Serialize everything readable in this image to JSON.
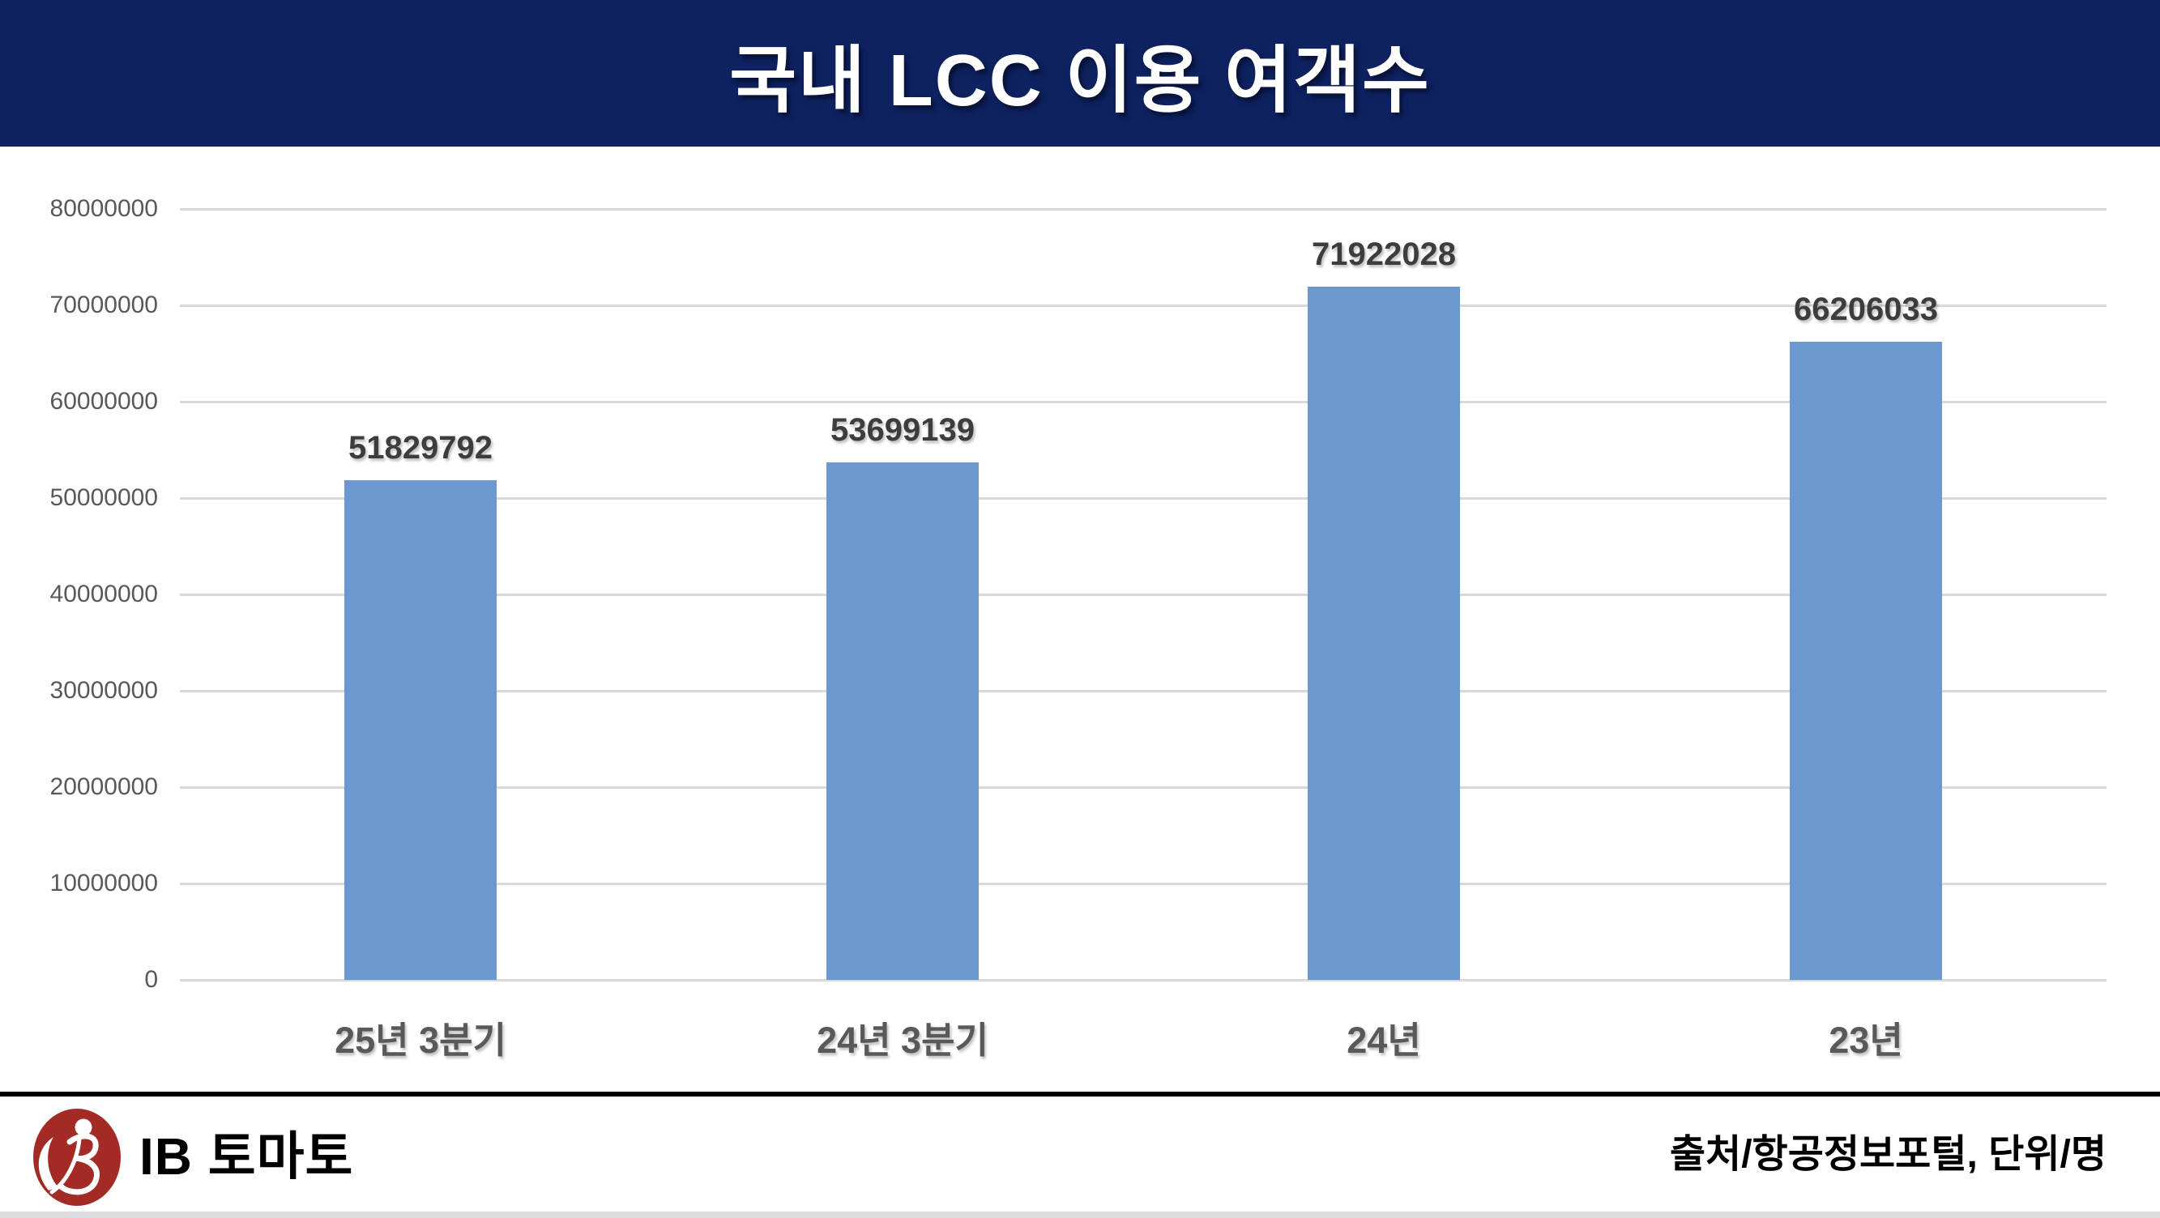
{
  "header": {
    "title": "국내 LCC 이용 여객수",
    "bg_color": "#0e2160",
    "text_color": "#ffffff"
  },
  "chart_data": {
    "type": "bar",
    "title": "국내 LCC 이용 여객수",
    "categories": [
      "25년 3분기",
      "24년 3분기",
      "24년",
      "23년"
    ],
    "values": [
      51829792,
      53699139,
      71922028,
      66206033
    ],
    "value_labels": [
      "51829792",
      "53699139",
      "71922028",
      "66206033"
    ],
    "xlabel": "",
    "ylabel": "",
    "ylim": [
      0,
      80000000
    ],
    "ytick_step": 10000000,
    "yticks": [
      "0",
      "10000000",
      "20000000",
      "30000000",
      "40000000",
      "50000000",
      "60000000",
      "70000000",
      "80000000"
    ],
    "grid": true,
    "legend": "none",
    "bar_color": "#6b99cf",
    "gridline_color": "#d9d9d9",
    "ytick_label_color": "#595959",
    "xtick_label_color": "#595959",
    "value_label_color": "#3d3d3d"
  },
  "footer": {
    "logo_text": "IB 토마토",
    "logo_color": "#a22b25",
    "source_text": "출처/항공정보포털, 단위/명"
  }
}
